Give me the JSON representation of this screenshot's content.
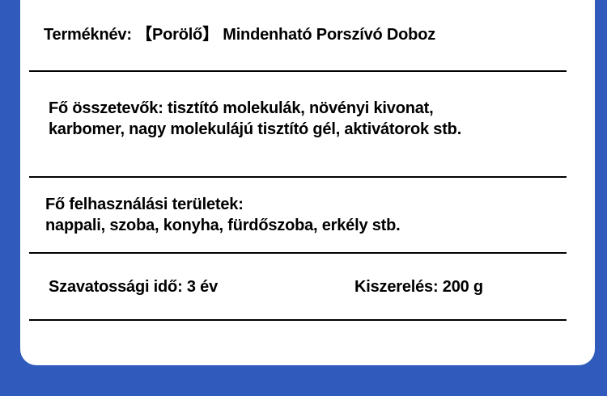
{
  "colors": {
    "background": "#305bbd",
    "card": "#ffffff",
    "text": "#000000"
  },
  "rows": {
    "product_name": "Terméknév: 【Porölő】 Mindenható Porszívó Doboz",
    "ingredients_line1": "Fő összetevők: tisztító molekulák, növényi kivonat,",
    "ingredients_line2": "karbomer, nagy molekulájú tisztító gél, aktivátorok stb.",
    "usage_line1": "Fő felhasználási területek:",
    "usage_line2": "nappali, szoba, konyha, fürdőszoba, erkély stb.",
    "shelf_life": "Szavatossági idő: 3 év",
    "size": "Kiszerelés: 200 g"
  }
}
